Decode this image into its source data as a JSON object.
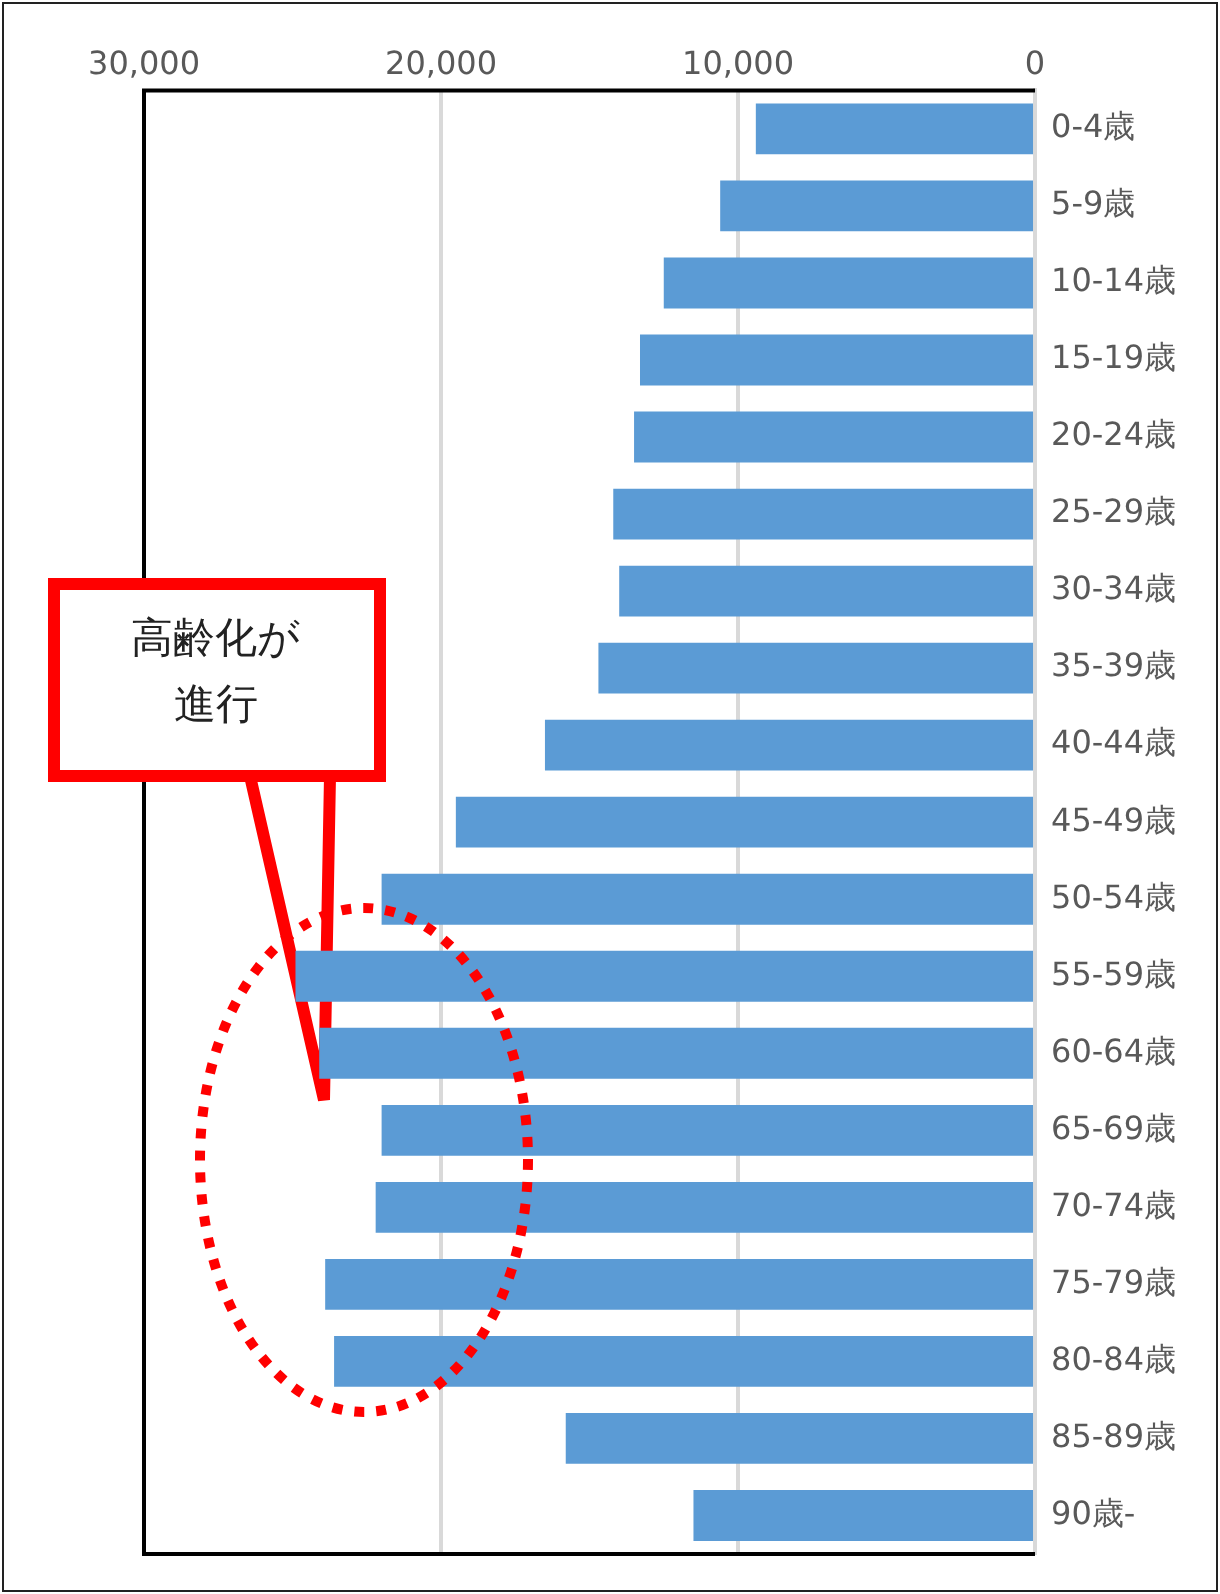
{
  "chart_data": {
    "type": "bar",
    "orientation": "horizontal",
    "categories": [
      "0-4歳",
      "5-9歳",
      "10-14歳",
      "15-19歳",
      "20-24歳",
      "25-29歳",
      "30-34歳",
      "35-39歳",
      "40-44歳",
      "45-49歳",
      "50-54歳",
      "55-59歳",
      "60-64歳",
      "65-69歳",
      "70-74歳",
      "75-79歳",
      "80-84歳",
      "85-89歳",
      "90歳-"
    ],
    "values": [
      9400,
      10600,
      12500,
      13300,
      13500,
      14200,
      14000,
      14700,
      16500,
      19500,
      22000,
      24900,
      24100,
      22000,
      22200,
      23900,
      23600,
      15800,
      11500
    ],
    "color": "#5b9bd5",
    "xlim": [
      30000,
      0
    ],
    "xticks": [
      {
        "value": 30000,
        "label": "30,000"
      },
      {
        "value": 20000,
        "label": "20,000"
      },
      {
        "value": 10000,
        "label": "10,000"
      },
      0
    ],
    "grid": "x",
    "annotations": [
      "高齢化が進行"
    ]
  }
}
